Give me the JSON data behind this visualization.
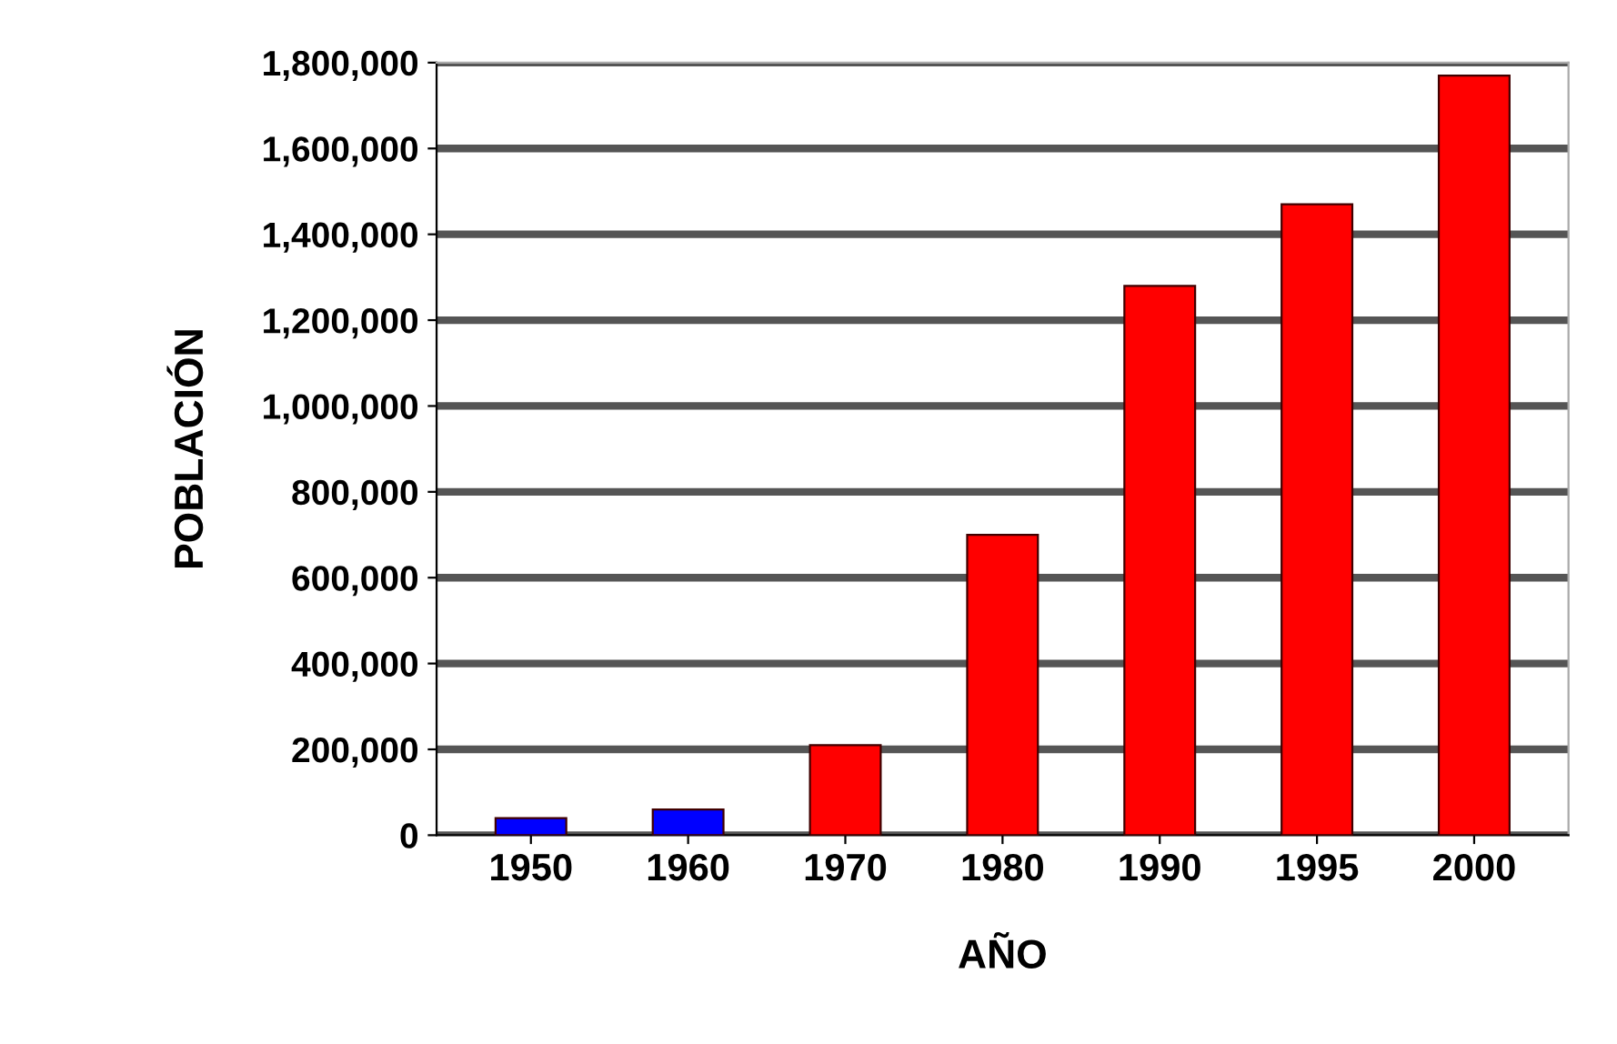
{
  "chart_data": {
    "type": "bar",
    "xlabel": "AÑO",
    "ylabel": "POBLACIÓN",
    "categories": [
      "1950",
      "1960",
      "1970",
      "1980",
      "1990",
      "1995",
      "2000"
    ],
    "values": [
      40000,
      60000,
      210000,
      700000,
      1280000,
      1470000,
      1770000
    ],
    "colors": [
      "#0000ff",
      "#0000ff",
      "#ff0000",
      "#ff0000",
      "#ff0000",
      "#ff0000",
      "#ff0000"
    ],
    "ylim": [
      0,
      1800000
    ],
    "yticks": [
      0,
      {
        "value": 200000,
        "label": "200,000"
      },
      {
        "value": 400000,
        "label": "400,000"
      },
      {
        "value": 600000,
        "label": "600,000"
      },
      {
        "value": 800000,
        "label": "800,000"
      },
      {
        "value": 1000000,
        "label": "1,000,000"
      },
      {
        "value": 1200000,
        "label": "1,200,000"
      },
      {
        "value": 1400000,
        "label": "1,400,000"
      },
      {
        "value": 1600000,
        "label": "1,600,000"
      },
      {
        "value": 1800000,
        "label": "1,800,000"
      }
    ],
    "grid": "y"
  }
}
